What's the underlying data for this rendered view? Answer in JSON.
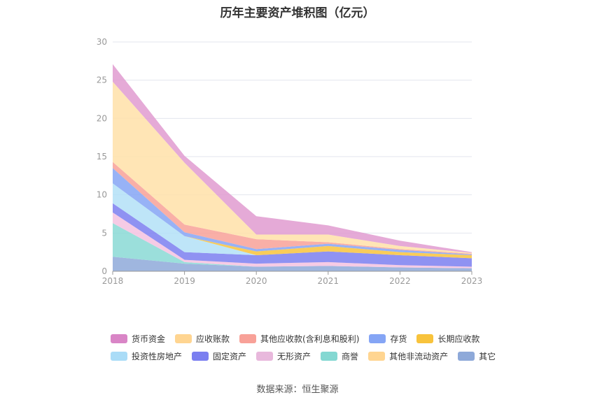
{
  "chart_data": {
    "type": "area",
    "stacked": true,
    "title": "历年主要资产堆积图（亿元）",
    "x": [
      "2018",
      "2019",
      "2020",
      "2021",
      "2022",
      "2023"
    ],
    "ylim": [
      0,
      30
    ],
    "yticks": [
      0,
      5,
      10,
      15,
      20,
      25,
      30
    ],
    "grid": true,
    "legend_position": "bottom",
    "series": [
      {
        "name": "其它",
        "color": "#8ea9d9",
        "values": [
          1.9,
          1.0,
          0.6,
          0.7,
          0.5,
          0.4
        ]
      },
      {
        "name": "其他非流动资产",
        "color": "#ffd591",
        "values": [
          0.0,
          0.0,
          0.0,
          0.0,
          0.0,
          0.0
        ]
      },
      {
        "name": "商誉",
        "color": "#8ad9d5",
        "values": [
          4.4,
          0.2,
          0.0,
          0.0,
          0.0,
          0.0
        ]
      },
      {
        "name": "无形资产",
        "color": "#f5c2e0",
        "values": [
          1.4,
          0.3,
          0.4,
          0.5,
          0.3,
          0.2
        ]
      },
      {
        "name": "固定资产",
        "color": "#7b7ff0",
        "values": [
          1.2,
          1.0,
          1.1,
          1.4,
          1.3,
          1.1
        ]
      },
      {
        "name": "投资性房地产",
        "color": "#b3e0f7",
        "values": [
          2.6,
          2.1,
          0.0,
          0.0,
          0.0,
          0.0
        ]
      },
      {
        "name": "长期应收款",
        "color": "#f8c33c",
        "values": [
          0.0,
          0.0,
          0.5,
          0.7,
          0.4,
          0.4
        ]
      },
      {
        "name": "存货",
        "color": "#85a5f5",
        "values": [
          2.0,
          0.5,
          0.3,
          0.3,
          0.3,
          0.1
        ]
      },
      {
        "name": "其他应收款(含利息和股利)",
        "color": "#f8a198",
        "values": [
          0.8,
          1.0,
          1.3,
          0.2,
          0.1,
          0.1
        ]
      },
      {
        "name": "应收账款",
        "color": "#ffe1a8",
        "values": [
          10.5,
          8.1,
          0.6,
          1.0,
          0.4,
          0.1
        ]
      },
      {
        "name": "货币资金",
        "color": "#e09bd0",
        "values": [
          2.3,
          0.9,
          2.4,
          1.2,
          0.7,
          0.1
        ]
      }
    ]
  },
  "legend": {
    "row1": [
      {
        "label": "货币资金",
        "color": "#d985c6"
      },
      {
        "label": "应收账款",
        "color": "#ffd591"
      },
      {
        "label": "其他应收款(含利息和股利)",
        "color": "#f8a198"
      },
      {
        "label": "存货",
        "color": "#85a5f5"
      },
      {
        "label": "长期应收款",
        "color": "#f8c33c"
      }
    ],
    "row2": [
      {
        "label": "投资性房地产",
        "color": "#aadcf7"
      },
      {
        "label": "固定资产",
        "color": "#7b7ff0"
      },
      {
        "label": "无形资产",
        "color": "#e8b8dc"
      },
      {
        "label": "商誉",
        "color": "#84d8d2"
      },
      {
        "label": "其他非流动资产",
        "color": "#ffd591"
      },
      {
        "label": "其它",
        "color": "#8ea9d9"
      }
    ]
  },
  "source": "数据来源：恒生聚源"
}
